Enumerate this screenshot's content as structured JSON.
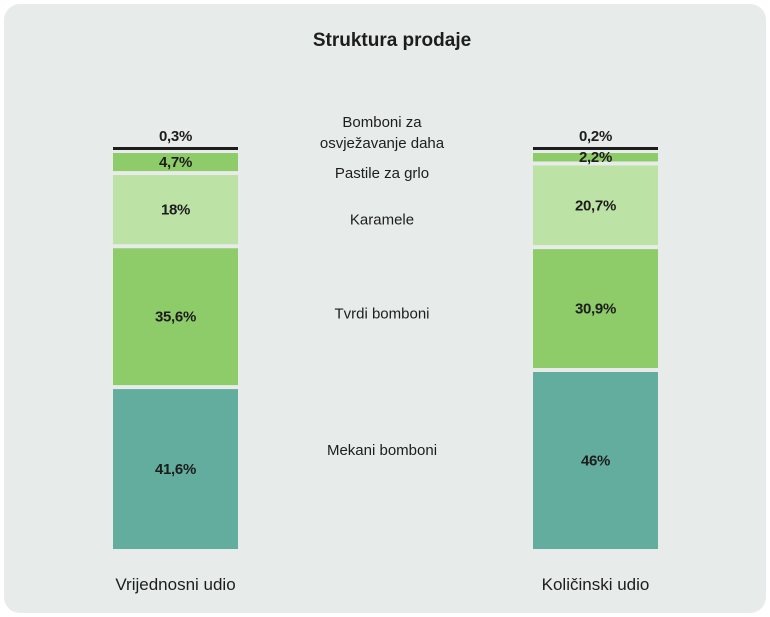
{
  "chart_data": {
    "type": "bar",
    "stacked": true,
    "title": "Struktura prodaje",
    "categories": [
      "Vrijednosni udio",
      "Količinski udio"
    ],
    "series": [
      {
        "name": "Mekani bomboni",
        "values": [
          41.6,
          46
        ],
        "labels": [
          "41,6%",
          "46%"
        ],
        "color": "#63ad9e"
      },
      {
        "name": "Tvrdi bomboni",
        "values": [
          35.6,
          30.9
        ],
        "labels": [
          "35,6%",
          "30,9%"
        ],
        "color": "#8ecc6a"
      },
      {
        "name": "Karamele",
        "values": [
          18,
          20.7
        ],
        "labels": [
          "18%",
          "20,7%"
        ],
        "color": "#bde2a6"
      },
      {
        "name": "Pastile za grlo",
        "values": [
          4.7,
          2.2
        ],
        "labels": [
          "4,7%",
          "2,2%"
        ],
        "color": "#8ecc6a"
      },
      {
        "name_lines": [
          "Bomboni za",
          "osvježavanje daha"
        ],
        "values": [
          0.3,
          0.2
        ],
        "labels": [
          "0,3%",
          "0,2%"
        ],
        "color": "#1d1d1d"
      }
    ],
    "ylim": [
      0,
      100
    ],
    "grid": false,
    "legend": "center-between-bars"
  }
}
